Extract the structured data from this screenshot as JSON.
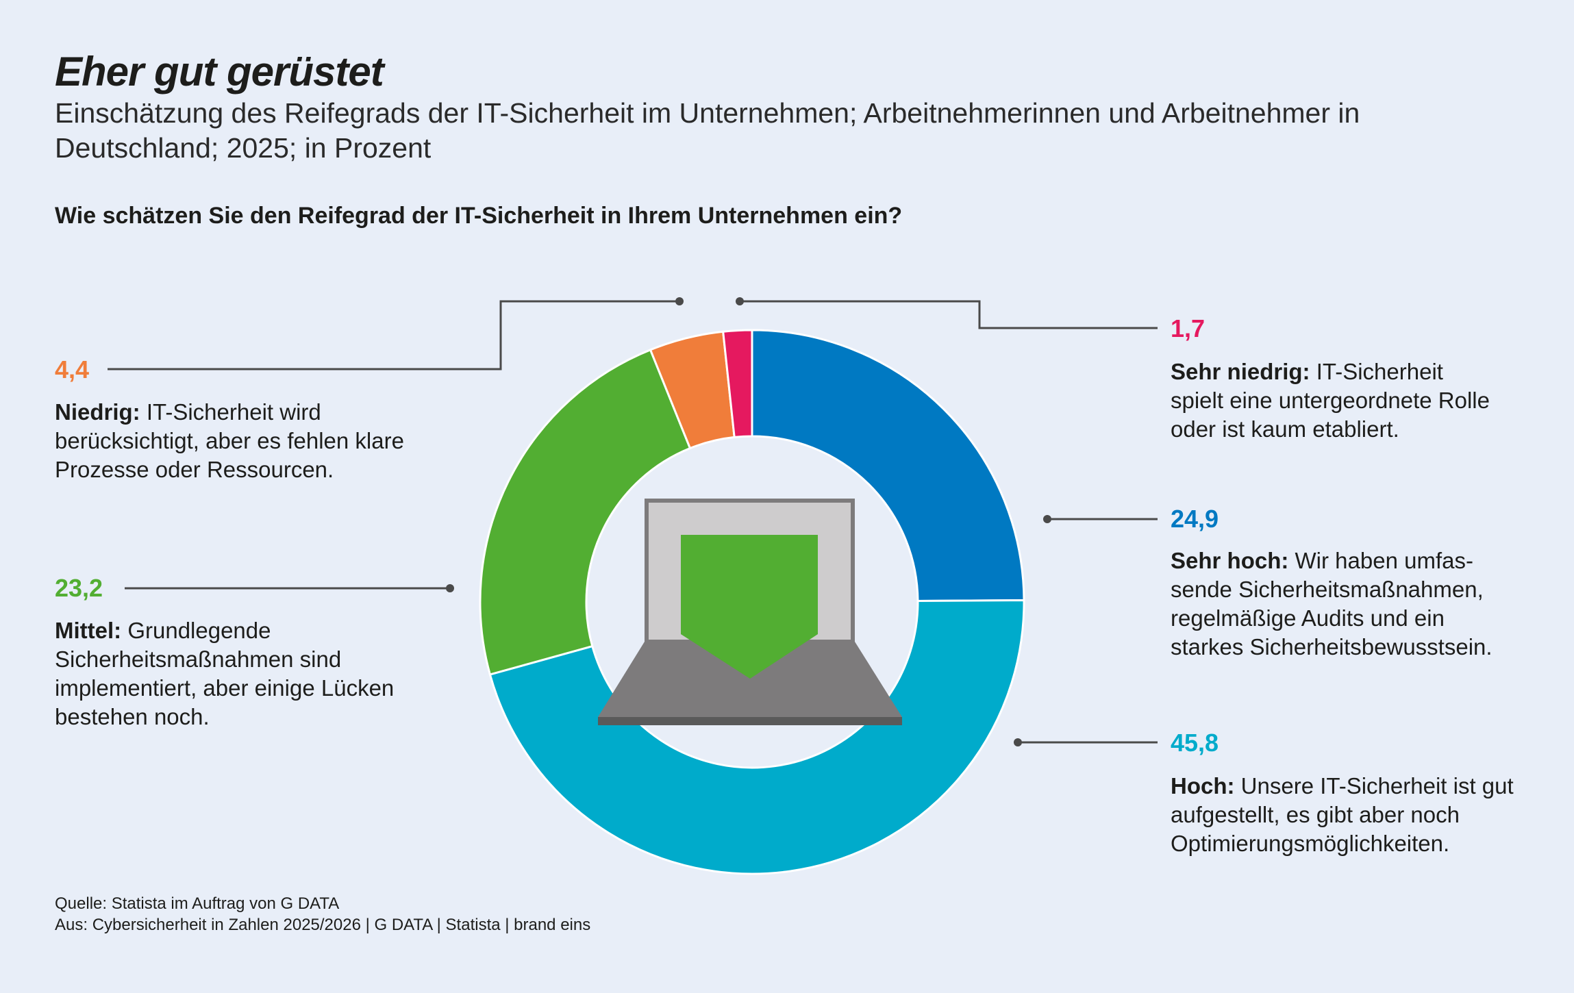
{
  "title": "Eher gut gerüstet",
  "subtitle": "Einschätzung des Reifegrads der IT-Sicherheit im Unternehmen; Arbeitnehmerinnen und Arbeitnehmer in Deutschland; 2025; in Prozent",
  "question": "Wie schätzen Sie den Reifegrad der IT-Sicherheit in Ihrem Unternehmen ein?",
  "footer": {
    "source": "Quelle: Statista im Auftrag von G DATA",
    "from": "Aus: Cybersicherheit in Zahlen 2025/2026 | G DATA | Statista | brand eins"
  },
  "center_icon": "laptop-shield-icon",
  "chart_data": {
    "type": "pie",
    "donut": true,
    "start": "top",
    "direction": "clockwise",
    "slices": [
      {
        "key": "sehr_hoch",
        "value": 24.9,
        "label": "24,9",
        "name": "Sehr hoch:",
        "text": "Wir haben umfas-sende Sicherheitsmaßnahmen, regelmäßige Audits und ein starkes Sicherheitsbewusstsein.",
        "color": "#0079c2"
      },
      {
        "key": "hoch",
        "value": 45.8,
        "label": "45,8",
        "name": "Hoch:",
        "text": "Unsere IT-Sicherheit ist gut aufgestellt, es gibt aber noch Optimierungsmöglichkeiten.",
        "color": "#00abcb"
      },
      {
        "key": "mittel",
        "value": 23.2,
        "label": "23,2",
        "name": "Mittel:",
        "text": "Grundlegende Sicherheitsmaßnahmen sind implementiert, aber einige Lücken bestehen noch.",
        "color": "#52ae32"
      },
      {
        "key": "niedrig",
        "value": 4.4,
        "label": "4,4",
        "name": "Niedrig:",
        "text": "IT-Sicherheit wird berücksichtigt, aber es fehlen klare Prozesse oder Ressourcen.",
        "color": "#f07d3a"
      },
      {
        "key": "sehr_niedrig",
        "value": 1.7,
        "label": "1,7",
        "name": "Sehr niedrig:",
        "text": "IT-Sicherheit spielt eine untergeordnete Rolle oder ist kaum etabliert.",
        "color": "#e5195f"
      }
    ]
  }
}
